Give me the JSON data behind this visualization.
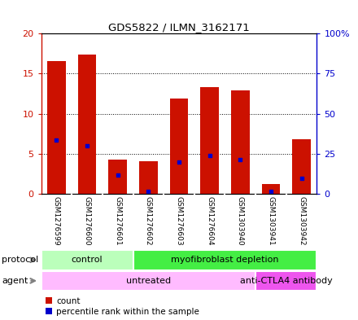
{
  "title": "GDS5822 / ILMN_3162171",
  "samples": [
    "GSM1276599",
    "GSM1276600",
    "GSM1276601",
    "GSM1276602",
    "GSM1276603",
    "GSM1276604",
    "GSM1303940",
    "GSM1303941",
    "GSM1303942"
  ],
  "counts": [
    16.6,
    17.4,
    4.3,
    4.0,
    11.9,
    13.3,
    12.9,
    1.2,
    6.8
  ],
  "percentile_ranks": [
    33.5,
    30.0,
    11.5,
    1.5,
    19.5,
    24.0,
    21.5,
    1.5,
    9.5
  ],
  "ylim_left": [
    0,
    20
  ],
  "ylim_right": [
    0,
    100
  ],
  "yticks_left": [
    0,
    5,
    10,
    15,
    20
  ],
  "yticks_right": [
    0,
    25,
    50,
    75,
    100
  ],
  "ytick_labels_left": [
    "0",
    "5",
    "10",
    "15",
    "20"
  ],
  "ytick_labels_right": [
    "0",
    "25",
    "50",
    "75",
    "100%"
  ],
  "bar_color": "#cc1100",
  "percentile_color": "#0000cc",
  "bar_width": 0.6,
  "protocol_groups": [
    {
      "label": "control",
      "start": 0,
      "end": 2,
      "color": "#bbffbb"
    },
    {
      "label": "myofibroblast depletion",
      "start": 3,
      "end": 8,
      "color": "#44ee44"
    }
  ],
  "agent_groups": [
    {
      "label": "untreated",
      "start": 0,
      "end": 6,
      "color": "#ffbbff"
    },
    {
      "label": "anti-CTLA4 antibody",
      "start": 7,
      "end": 8,
      "color": "#ee55ee"
    }
  ],
  "legend_count_label": "count",
  "legend_percentile_label": "percentile rank within the sample",
  "protocol_label": "protocol",
  "agent_label": "agent",
  "left_axis_color": "#cc1100",
  "right_axis_color": "#0000cc",
  "grid_color": "#000000",
  "sample_bg_color": "#cccccc",
  "sample_sep_color": "#ffffff"
}
